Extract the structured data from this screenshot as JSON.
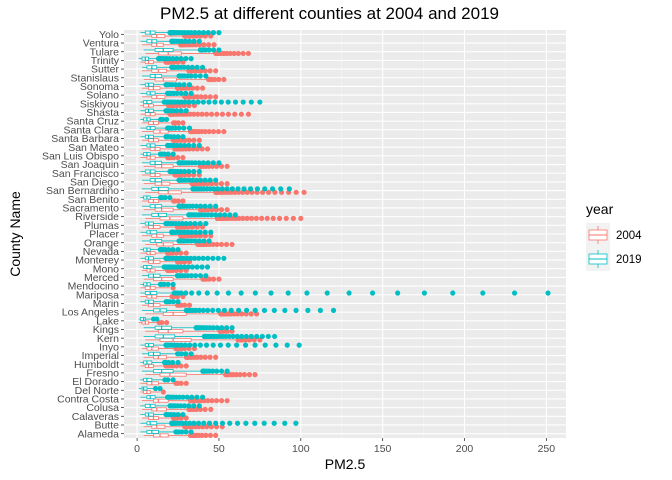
{
  "chart_data": {
    "type": "boxplot",
    "orientation": "horizontal",
    "title": "PM2.5 at different counties at 2004 and 2019",
    "xlabel": "PM2.5",
    "ylabel": "County Name",
    "xlim": [
      -8,
      262
    ],
    "xticks": [
      0,
      50,
      100,
      150,
      200,
      250
    ],
    "grid": true,
    "legend": {
      "title": "year",
      "placement": "right",
      "entries": [
        {
          "label": "2004",
          "color": "#F8766D"
        },
        {
          "label": "2019",
          "color": "#00BFC4"
        }
      ]
    },
    "categories": [
      "Alameda",
      "Butte",
      "Calaveras",
      "Colusa",
      "Contra Costa",
      "Del Norte",
      "El Dorado",
      "Fresno",
      "Humboldt",
      "Imperial",
      "Inyo",
      "Kern",
      "Kings",
      "Lake",
      "Los Angeles",
      "Marin",
      "Mariposa",
      "Mendocino",
      "Merced",
      "Mono",
      "Monterey",
      "Nevada",
      "Orange",
      "Placer",
      "Plumas",
      "Riverside",
      "Sacramento",
      "San Benito",
      "San Bernardino",
      "San Diego",
      "San Francisco",
      "San Joaquin",
      "San Luis Obispo",
      "San Mateo",
      "Santa Barbara",
      "Santa Clara",
      "Santa Cruz",
      "Shasta",
      "Siskiyou",
      "Solano",
      "Sonoma",
      "Stanislaus",
      "Sutter",
      "Trinity",
      "Tulare",
      "Ventura",
      "Yolo"
    ],
    "series": [
      {
        "name": "2004",
        "color": "#F8766D",
        "boxes": [
          [
            4,
            10,
            14,
            19,
            48
          ],
          [
            4,
            9,
            12,
            17,
            52
          ],
          [
            3,
            7,
            10,
            13,
            30
          ],
          [
            3,
            9,
            12,
            18,
            45
          ],
          [
            3,
            10,
            13,
            19,
            55
          ],
          [
            2,
            4,
            6,
            8,
            16
          ],
          [
            2,
            6,
            9,
            13,
            30
          ],
          [
            5,
            14,
            20,
            30,
            72
          ],
          [
            2,
            5,
            7,
            10,
            30
          ],
          [
            4,
            10,
            13,
            18,
            48
          ],
          [
            3,
            6,
            9,
            13,
            35
          ],
          [
            5,
            14,
            22,
            33,
            75
          ],
          [
            5,
            13,
            19,
            28,
            58
          ],
          [
            1,
            3,
            5,
            7,
            18
          ],
          [
            5,
            16,
            22,
            30,
            73
          ],
          [
            3,
            7,
            10,
            14,
            32
          ],
          [
            2,
            6,
            9,
            12,
            28
          ],
          [
            2,
            5,
            8,
            11,
            22
          ],
          [
            4,
            10,
            15,
            22,
            50
          ],
          [
            3,
            6,
            8,
            11,
            30
          ],
          [
            3,
            7,
            10,
            14,
            32
          ],
          [
            2,
            6,
            8,
            11,
            30
          ],
          [
            5,
            12,
            16,
            22,
            58
          ],
          [
            3,
            9,
            12,
            16,
            45
          ],
          [
            3,
            7,
            10,
            14,
            40
          ],
          [
            5,
            14,
            20,
            28,
            100
          ],
          [
            4,
            11,
            15,
            22,
            55
          ],
          [
            3,
            7,
            10,
            13,
            28
          ],
          [
            5,
            13,
            19,
            27,
            102
          ],
          [
            4,
            11,
            15,
            20,
            55
          ],
          [
            3,
            8,
            11,
            14,
            38
          ],
          [
            4,
            11,
            15,
            22,
            55
          ],
          [
            2,
            6,
            8,
            11,
            28
          ],
          [
            3,
            8,
            11,
            14,
            43
          ],
          [
            3,
            7,
            10,
            13,
            38
          ],
          [
            3,
            10,
            14,
            19,
            53
          ],
          [
            3,
            7,
            10,
            13,
            28
          ],
          [
            2,
            5,
            8,
            11,
            68
          ],
          [
            2,
            4,
            7,
            10,
            35
          ],
          [
            3,
            9,
            12,
            17,
            48
          ],
          [
            3,
            7,
            10,
            14,
            40
          ],
          [
            4,
            11,
            16,
            24,
            53
          ],
          [
            3,
            9,
            13,
            18,
            48
          ],
          [
            2,
            5,
            7,
            10,
            28
          ],
          [
            5,
            13,
            19,
            27,
            68
          ],
          [
            3,
            9,
            12,
            16,
            47
          ],
          [
            3,
            9,
            12,
            17,
            45
          ]
        ]
      },
      {
        "name": "2019",
        "color": "#00BFC4",
        "boxes": [
          [
            2,
            6,
            9,
            13,
            33
          ],
          [
            2,
            6,
            8,
            12,
            97
          ],
          [
            2,
            5,
            7,
            10,
            28
          ],
          [
            2,
            5,
            8,
            11,
            38
          ],
          [
            2,
            6,
            8,
            11,
            40
          ],
          [
            1,
            3,
            4,
            6,
            14
          ],
          [
            2,
            4,
            6,
            9,
            22
          ],
          [
            3,
            10,
            15,
            22,
            55
          ],
          [
            2,
            4,
            6,
            9,
            25
          ],
          [
            3,
            7,
            10,
            14,
            33
          ],
          [
            2,
            5,
            7,
            10,
            99
          ],
          [
            4,
            11,
            16,
            23,
            84
          ],
          [
            4,
            11,
            15,
            21,
            58
          ],
          [
            1,
            2,
            4,
            5,
            12
          ],
          [
            3,
            10,
            14,
            18,
            120
          ],
          [
            2,
            5,
            7,
            10,
            25
          ],
          [
            2,
            5,
            8,
            12,
            251
          ],
          [
            2,
            4,
            6,
            8,
            22
          ],
          [
            3,
            7,
            10,
            14,
            42
          ],
          [
            2,
            4,
            6,
            9,
            43
          ],
          [
            2,
            5,
            7,
            10,
            53
          ],
          [
            2,
            4,
            6,
            8,
            25
          ],
          [
            3,
            8,
            11,
            15,
            44
          ],
          [
            2,
            6,
            8,
            12,
            45
          ],
          [
            2,
            5,
            7,
            10,
            42
          ],
          [
            3,
            9,
            13,
            18,
            60
          ],
          [
            3,
            8,
            11,
            15,
            48
          ],
          [
            2,
            4,
            6,
            8,
            20
          ],
          [
            3,
            9,
            13,
            19,
            93
          ],
          [
            3,
            8,
            11,
            15,
            48
          ],
          [
            2,
            5,
            8,
            11,
            38
          ],
          [
            3,
            8,
            11,
            15,
            50
          ],
          [
            2,
            4,
            6,
            8,
            22
          ],
          [
            2,
            6,
            8,
            11,
            38
          ],
          [
            2,
            5,
            7,
            10,
            28
          ],
          [
            2,
            6,
            8,
            11,
            32
          ],
          [
            2,
            4,
            6,
            8,
            18
          ],
          [
            2,
            5,
            7,
            10,
            30
          ],
          [
            2,
            4,
            6,
            9,
            75
          ],
          [
            2,
            6,
            8,
            11,
            33
          ],
          [
            2,
            5,
            7,
            10,
            32
          ],
          [
            3,
            8,
            11,
            15,
            42
          ],
          [
            3,
            6,
            9,
            12,
            40
          ],
          [
            1,
            3,
            5,
            7,
            33
          ],
          [
            4,
            11,
            16,
            22,
            50
          ],
          [
            2,
            6,
            9,
            12,
            38
          ],
          [
            2,
            5,
            8,
            11,
            50
          ]
        ]
      }
    ]
  }
}
